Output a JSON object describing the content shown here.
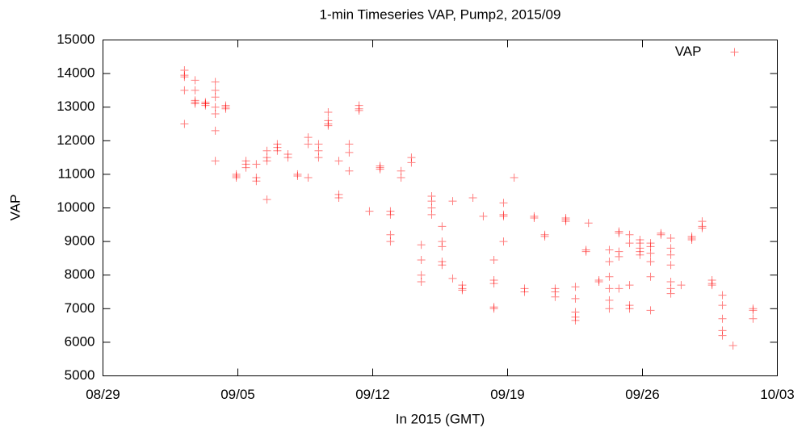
{
  "chart_data": {
    "type": "scatter",
    "title": "1-min Timeseries VAP, Pump2, 2015/09",
    "x_label": "In 2015 (GMT)",
    "y_label": "VAP",
    "legend": "top-right",
    "xlim": [
      0,
      35
    ],
    "xticks": [
      {
        "value": 0,
        "label": "08/29"
      },
      {
        "value": 7,
        "label": "09/05"
      },
      {
        "value": 14,
        "label": "09/12"
      },
      {
        "value": 21,
        "label": "09/19"
      },
      {
        "value": 28,
        "label": "09/26"
      },
      {
        "value": 35,
        "label": "10/03"
      }
    ],
    "ylim": [
      5000,
      15000
    ],
    "yticks": [
      5000,
      6000,
      7000,
      8000,
      9000,
      10000,
      11000,
      12000,
      13000,
      14000,
      15000
    ],
    "series": [
      {
        "name": "VAP",
        "color": "#ff0000",
        "x": [
          4.23,
          4.23,
          4.23,
          4.23,
          4.23,
          4.78,
          4.78,
          4.78,
          4.78,
          4.78,
          5.32,
          5.32,
          5.32,
          5.32,
          5.83,
          5.83,
          5.83,
          5.83,
          5.83,
          5.83,
          5.83,
          6.37,
          6.37,
          6.37,
          6.92,
          6.92,
          6.92,
          7.42,
          7.42,
          7.42,
          7.96,
          7.96,
          7.96,
          8.51,
          8.51,
          8.51,
          8.51,
          9.05,
          9.05,
          9.05,
          9.6,
          9.6,
          10.1,
          10.1,
          10.65,
          10.65,
          10.65,
          11.19,
          11.19,
          11.19,
          11.69,
          11.69,
          11.69,
          11.69,
          12.24,
          12.24,
          12.24,
          12.78,
          12.78,
          12.78,
          13.29,
          13.29,
          13.29,
          13.83,
          14.38,
          14.38,
          14.38,
          14.92,
          14.92,
          14.92,
          14.92,
          15.47,
          15.47,
          16.01,
          16.01,
          16.52,
          16.52,
          16.52,
          16.52,
          17.06,
          17.06,
          17.06,
          17.06,
          17.6,
          17.6,
          17.6,
          17.6,
          17.6,
          18.15,
          18.15,
          18.65,
          18.65,
          18.65,
          19.2,
          19.74,
          20.29,
          20.29,
          20.29,
          20.29,
          20.29,
          20.79,
          20.79,
          20.79,
          20.79,
          21.34,
          21.88,
          21.88,
          22.38,
          22.38,
          22.93,
          22.93,
          23.47,
          23.47,
          23.47,
          24.02,
          24.02,
          24.02,
          24.52,
          24.52,
          24.52,
          24.52,
          24.52,
          25.07,
          25.07,
          25.2,
          25.74,
          25.74,
          26.28,
          26.28,
          26.28,
          26.28,
          26.28,
          26.28,
          26.78,
          26.78,
          26.78,
          26.78,
          26.78,
          27.33,
          27.33,
          27.33,
          27.33,
          27.33,
          27.87,
          27.87,
          27.87,
          27.87,
          27.87,
          28.42,
          28.42,
          28.42,
          28.42,
          28.42,
          28.42,
          28.96,
          28.96,
          29.47,
          29.47,
          29.47,
          29.47,
          29.47,
          29.47,
          29.47,
          30.01,
          30.56,
          30.56,
          30.56,
          31.1,
          31.1,
          31.1,
          31.61,
          31.61,
          31.61,
          32.15,
          32.15,
          32.15,
          32.15,
          32.15,
          32.7,
          33.74,
          33.74,
          33.74
        ],
        "values": [
          14100,
          13950,
          13900,
          13500,
          12500,
          13800,
          13500,
          13200,
          13100,
          13150,
          13100,
          13050,
          13100,
          13150,
          13750,
          13500,
          13300,
          13000,
          12800,
          12300,
          11400,
          13050,
          12950,
          13000,
          10950,
          10900,
          11000,
          11400,
          11300,
          11200,
          10900,
          10800,
          11300,
          11700,
          11500,
          11400,
          10250,
          11900,
          11800,
          11700,
          11600,
          11500,
          11000,
          10950,
          12100,
          11900,
          10900,
          11900,
          11700,
          11500,
          12850,
          12600,
          12450,
          12500,
          10400,
          10300,
          11400,
          11900,
          11650,
          11100,
          13050,
          12950,
          12900,
          9900,
          11250,
          11200,
          11150,
          9900,
          9800,
          9200,
          9000,
          11100,
          10900,
          11500,
          11350,
          8900,
          8450,
          8000,
          7800,
          10350,
          10200,
          10000,
          9800,
          9450,
          9000,
          8850,
          8400,
          8300,
          10200,
          7900,
          7700,
          7600,
          7550,
          10300,
          9750,
          8450,
          7850,
          7750,
          7000,
          7050,
          10150,
          9800,
          9750,
          9000,
          10900,
          7600,
          7500,
          9750,
          9700,
          9200,
          9150,
          7600,
          7500,
          7350,
          9700,
          9600,
          9650,
          7650,
          7300,
          6900,
          6750,
          6650,
          8700,
          8750,
          9550,
          7850,
          7800,
          8750,
          8400,
          7950,
          7600,
          7250,
          7000,
          9300,
          9250,
          8700,
          8550,
          7600,
          9200,
          8950,
          7700,
          7100,
          7000,
          9050,
          8950,
          8800,
          8700,
          8600,
          8950,
          8850,
          8650,
          8400,
          7950,
          6950,
          9250,
          9200,
          9100,
          8800,
          8600,
          8300,
          7800,
          7600,
          7450,
          7700,
          9150,
          9050,
          9100,
          9600,
          9400,
          9450,
          7850,
          7700,
          7750,
          7400,
          7100,
          6700,
          6350,
          6200,
          5900,
          7000,
          6950,
          6700
        ]
      }
    ]
  }
}
